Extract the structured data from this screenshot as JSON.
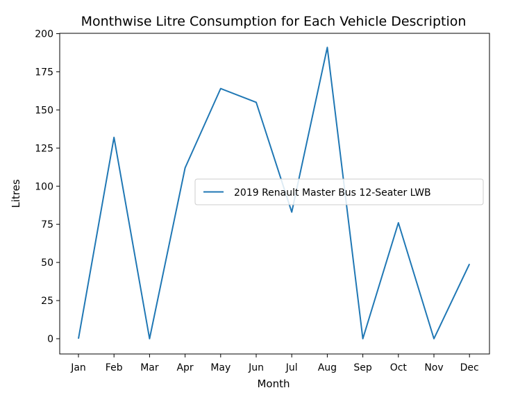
{
  "chart_data": {
    "type": "line",
    "title": "Monthwise Litre Consumption for Each Vehicle Description",
    "xlabel": "Month",
    "ylabel": "Litres",
    "categories": [
      "Jan",
      "Feb",
      "Mar",
      "Apr",
      "May",
      "Jun",
      "Jul",
      "Aug",
      "Sep",
      "Oct",
      "Nov",
      "Dec"
    ],
    "series": [
      {
        "name": "2019 Renault Master Bus 12-Seater LWB",
        "color": "#1f77b4",
        "values": [
          0,
          132,
          0,
          112,
          164,
          155,
          83,
          191,
          0,
          76,
          0,
          49
        ]
      }
    ],
    "ylim": [
      -10,
      200
    ],
    "yticks": [
      0,
      25,
      50,
      75,
      100,
      125,
      150,
      175,
      200
    ],
    "grid": false,
    "legend": "center-right"
  }
}
